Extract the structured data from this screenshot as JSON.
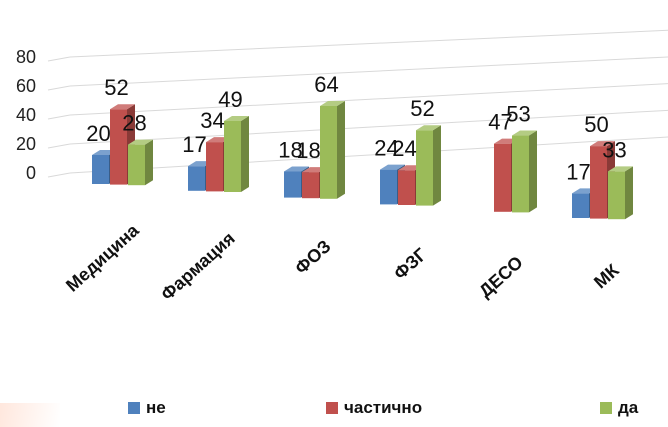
{
  "chart_data": {
    "type": "bar",
    "style": "3d-clustered-column",
    "categories": [
      "Медицина",
      "Фармация",
      "ФОЗ",
      "ФЗГ",
      "ДЕСО",
      "МК"
    ],
    "series": [
      {
        "name": "не",
        "color": "#4f81bd",
        "values": [
          20,
          17,
          18,
          24,
          null,
          17
        ]
      },
      {
        "name": "частично",
        "color": "#c0504d",
        "values": [
          52,
          34,
          18,
          24,
          47,
          50
        ]
      },
      {
        "name": "да",
        "color": "#9bbb59",
        "values": [
          28,
          49,
          64,
          52,
          53,
          33
        ]
      }
    ],
    "y_ticks": [
      0,
      20,
      40,
      60,
      80
    ],
    "ylim": [
      0,
      80
    ],
    "grid": true,
    "legend_position": "bottom"
  }
}
